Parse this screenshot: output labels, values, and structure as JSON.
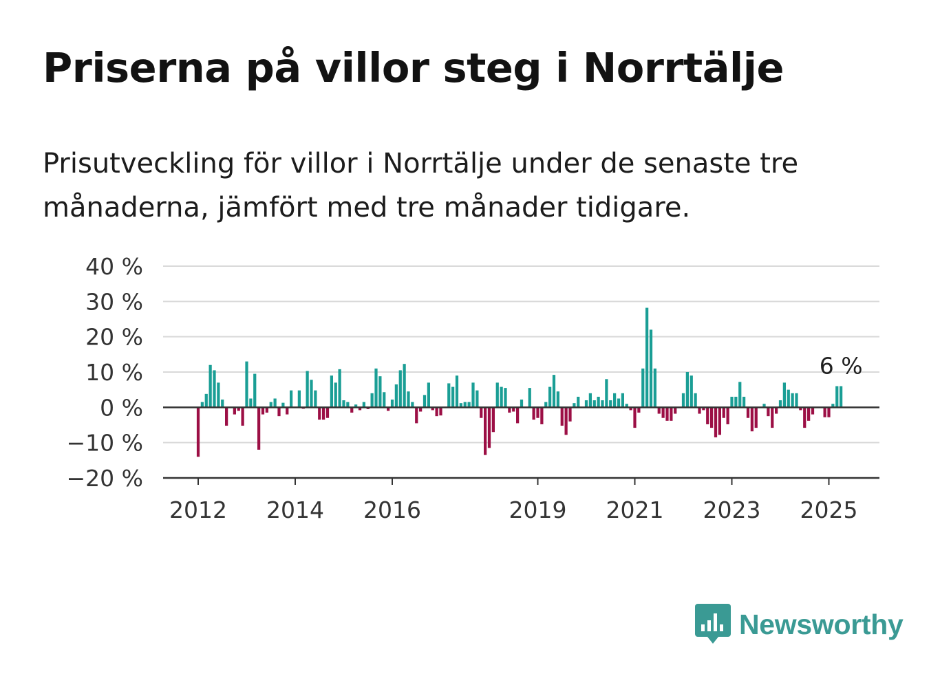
{
  "title": "Priserna på villor steg i Norrtälje",
  "subtitle": "Prisutveckling för villor i Norrtälje under de senaste tre månaderna, jämfört med tre månader tidigare.",
  "brand": {
    "name": "Newsworthy",
    "icon": "bar-chart-speech-bubble-icon",
    "color": "#3a9a94"
  },
  "colors": {
    "positive": "#1a9e95",
    "negative": "#9c0f45",
    "grid": "#d9d9d9",
    "axis": "#333333"
  },
  "chart_data": {
    "type": "bar",
    "title": "Priserna på villor steg i Norrtälje",
    "xlabel": "",
    "ylabel": "",
    "ylim": [
      -20,
      40
    ],
    "y_ticks": [
      40,
      30,
      20,
      10,
      0,
      -10,
      -20
    ],
    "y_tick_labels": [
      "40 %",
      "30 %",
      "20 %",
      "10 %",
      "0 %",
      "−10 %",
      "−20 %"
    ],
    "x_ticks": [
      2012,
      2014,
      2016,
      2019,
      2021,
      2023,
      2025
    ],
    "x_tick_labels": [
      "2012",
      "2014",
      "2016",
      "2019",
      "2021",
      "2023",
      "2025"
    ],
    "grid": true,
    "unit": "%",
    "start": "2012-01",
    "frequency": "monthly",
    "values": [
      -14,
      1.5,
      3.8,
      12,
      10.5,
      7,
      2.2,
      -5.2,
      0,
      -2,
      -1,
      -5.2,
      13,
      2.5,
      9.5,
      -12,
      -2,
      -1.5,
      1.5,
      2.5,
      -2.5,
      1.3,
      -2,
      4.8,
      0,
      4.8,
      -0.4,
      10.3,
      7.8,
      4.8,
      -3.5,
      -3.5,
      -3,
      9,
      7,
      10.8,
      2,
      1.5,
      -1.5,
      0.8,
      -0.8,
      1.5,
      -0.5,
      4,
      11,
      8.8,
      4.3,
      -1,
      2.2,
      6.5,
      10.5,
      12.3,
      4.5,
      1.5,
      -4.5,
      -1.2,
      3.5,
      7,
      -0.8,
      -2.5,
      -2.3,
      0,
      6.8,
      5.8,
      9,
      1.2,
      1.5,
      1.5,
      7,
      4.8,
      -3,
      -13.5,
      -11.5,
      -7,
      7,
      5.8,
      5.5,
      -1.5,
      -1.2,
      -4.5,
      2.2,
      0,
      5.5,
      -3.5,
      -3,
      -4.8,
      1.5,
      5.8,
      9.2,
      4.5,
      -5.2,
      -7.8,
      -4,
      1.2,
      3,
      0,
      2,
      4,
      2,
      3,
      2,
      8,
      2,
      4,
      2.5,
      4,
      1,
      -0.8,
      -5.8,
      -1.5,
      11,
      28.2,
      22,
      11,
      -1.8,
      -3,
      -3.8,
      -3.8,
      -1.8,
      0,
      4,
      10,
      9,
      4,
      -1.8,
      -0.8,
      -4.8,
      -5.8,
      -8.5,
      -7.8,
      -3,
      -4.8,
      3,
      3,
      7.2,
      3,
      -3,
      -6.8,
      -5.8,
      0,
      1,
      -2.5,
      -5.8,
      -1.8,
      2,
      7,
      5,
      4,
      4,
      -0.8,
      -5.8,
      -3.8,
      -2,
      0,
      0,
      -2.8,
      -2.8,
      1,
      6,
      6
    ],
    "annotations": [
      {
        "label": "6 %",
        "value": 6,
        "date": "2025-04"
      }
    ]
  }
}
